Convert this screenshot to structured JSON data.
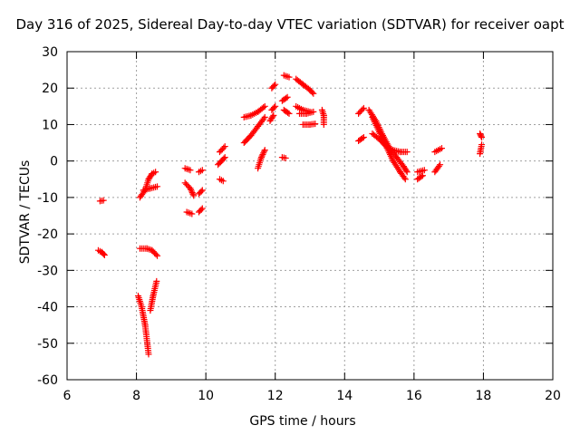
{
  "chart_data": {
    "type": "scatter",
    "title": "Day 316 of 2025, Sidereal Day-to-day VTEC variation (SDTVAR) for receiver oapt",
    "xlabel": "GPS time / hours",
    "ylabel": "SDTVAR / TECUs",
    "xlim": [
      6,
      20
    ],
    "ylim": [
      -60,
      30
    ],
    "xticks": [
      6,
      8,
      10,
      12,
      14,
      16,
      18,
      20
    ],
    "yticks": [
      -60,
      -50,
      -40,
      -30,
      -20,
      -10,
      0,
      10,
      20,
      30
    ],
    "grid": true,
    "marker": "+",
    "color": "#ff0000",
    "segments": [
      [
        [
          6.95,
          -11
        ],
        [
          7.05,
          -10.8
        ]
      ],
      [
        [
          6.9,
          -24.5
        ],
        [
          7.0,
          -25
        ],
        [
          7.08,
          -25.8
        ]
      ],
      [
        [
          8.1,
          -24
        ],
        [
          8.3,
          -24
        ],
        [
          8.45,
          -24.5
        ],
        [
          8.6,
          -26
        ]
      ],
      [
        [
          8.05,
          -37
        ],
        [
          8.15,
          -40
        ],
        [
          8.25,
          -45
        ],
        [
          8.35,
          -53
        ]
      ],
      [
        [
          8.4,
          -41
        ],
        [
          8.48,
          -37
        ],
        [
          8.58,
          -33
        ]
      ],
      [
        [
          8.1,
          -10
        ],
        [
          8.25,
          -8
        ],
        [
          8.35,
          -5
        ],
        [
          8.45,
          -3.5
        ],
        [
          8.55,
          -3
        ]
      ],
      [
        [
          8.2,
          -8
        ],
        [
          8.4,
          -7.5
        ],
        [
          8.6,
          -7
        ]
      ],
      [
        [
          9.4,
          -2
        ],
        [
          9.55,
          -2.5
        ]
      ],
      [
        [
          9.4,
          -6
        ],
        [
          9.55,
          -7.5
        ],
        [
          9.65,
          -9.5
        ]
      ],
      [
        [
          9.45,
          -14
        ],
        [
          9.6,
          -14.5
        ]
      ],
      [
        [
          9.8,
          -3
        ],
        [
          9.9,
          -2.5
        ]
      ],
      [
        [
          9.8,
          -9
        ],
        [
          9.9,
          -8
        ]
      ],
      [
        [
          9.8,
          -14
        ],
        [
          9.9,
          -13
        ]
      ],
      [
        [
          10.35,
          -1
        ],
        [
          10.45,
          0
        ],
        [
          10.55,
          1
        ]
      ],
      [
        [
          10.4,
          -5
        ],
        [
          10.5,
          -5.5
        ]
      ],
      [
        [
          10.4,
          2.5
        ],
        [
          10.55,
          4
        ]
      ],
      [
        [
          11.1,
          5
        ],
        [
          11.3,
          7
        ],
        [
          11.5,
          9.5
        ],
        [
          11.7,
          12
        ]
      ],
      [
        [
          11.1,
          12
        ],
        [
          11.3,
          12.5
        ],
        [
          11.5,
          13.5
        ],
        [
          11.7,
          15
        ]
      ],
      [
        [
          11.5,
          -2
        ],
        [
          11.6,
          1
        ],
        [
          11.7,
          3
        ]
      ],
      [
        [
          11.85,
          11
        ],
        [
          11.95,
          12.5
        ]
      ],
      [
        [
          11.9,
          14
        ],
        [
          12.0,
          15
        ]
      ],
      [
        [
          11.9,
          20
        ],
        [
          12.0,
          21
        ]
      ],
      [
        [
          12.2,
          1
        ],
        [
          12.3,
          0.8
        ]
      ],
      [
        [
          12.2,
          16.5
        ],
        [
          12.35,
          17.5
        ]
      ],
      [
        [
          12.25,
          23.5
        ],
        [
          12.4,
          23
        ]
      ],
      [
        [
          12.25,
          14
        ],
        [
          12.4,
          13
        ]
      ],
      [
        [
          12.6,
          22.5
        ],
        [
          12.8,
          21
        ],
        [
          13.0,
          19.5
        ],
        [
          13.1,
          18.5
        ]
      ],
      [
        [
          12.6,
          15
        ],
        [
          12.8,
          14
        ],
        [
          13.0,
          13.5
        ]
      ],
      [
        [
          12.7,
          13
        ],
        [
          12.9,
          13
        ],
        [
          13.1,
          13.5
        ]
      ],
      [
        [
          12.8,
          10
        ],
        [
          13.0,
          10
        ],
        [
          13.15,
          10.2
        ]
      ],
      [
        [
          13.35,
          14
        ],
        [
          13.4,
          12.5
        ],
        [
          13.4,
          10
        ]
      ],
      [
        [
          14.4,
          5.5
        ],
        [
          14.55,
          6.5
        ]
      ],
      [
        [
          14.4,
          13
        ],
        [
          14.55,
          14.5
        ]
      ],
      [
        [
          14.7,
          14
        ],
        [
          14.9,
          11
        ],
        [
          15.1,
          7
        ],
        [
          15.3,
          3.5
        ],
        [
          15.5,
          1
        ],
        [
          15.7,
          -1.5
        ],
        [
          15.8,
          -3
        ]
      ],
      [
        [
          14.8,
          12
        ],
        [
          15.0,
          8
        ],
        [
          15.2,
          4
        ],
        [
          15.4,
          0
        ],
        [
          15.6,
          -3
        ],
        [
          15.75,
          -5
        ]
      ],
      [
        [
          14.8,
          7.5
        ],
        [
          15.0,
          6
        ],
        [
          15.2,
          4
        ],
        [
          15.4,
          3
        ],
        [
          15.6,
          2.5
        ],
        [
          15.8,
          2.5
        ]
      ],
      [
        [
          16.1,
          -5
        ],
        [
          16.25,
          -4
        ]
      ],
      [
        [
          16.1,
          -3
        ],
        [
          16.3,
          -2.5
        ]
      ],
      [
        [
          16.6,
          -3
        ],
        [
          16.75,
          -1
        ]
      ],
      [
        [
          16.6,
          2.5
        ],
        [
          16.8,
          3.5
        ]
      ],
      [
        [
          17.9,
          2
        ],
        [
          17.95,
          4.5
        ]
      ],
      [
        [
          17.9,
          7.5
        ],
        [
          17.95,
          6.5
        ]
      ]
    ]
  }
}
